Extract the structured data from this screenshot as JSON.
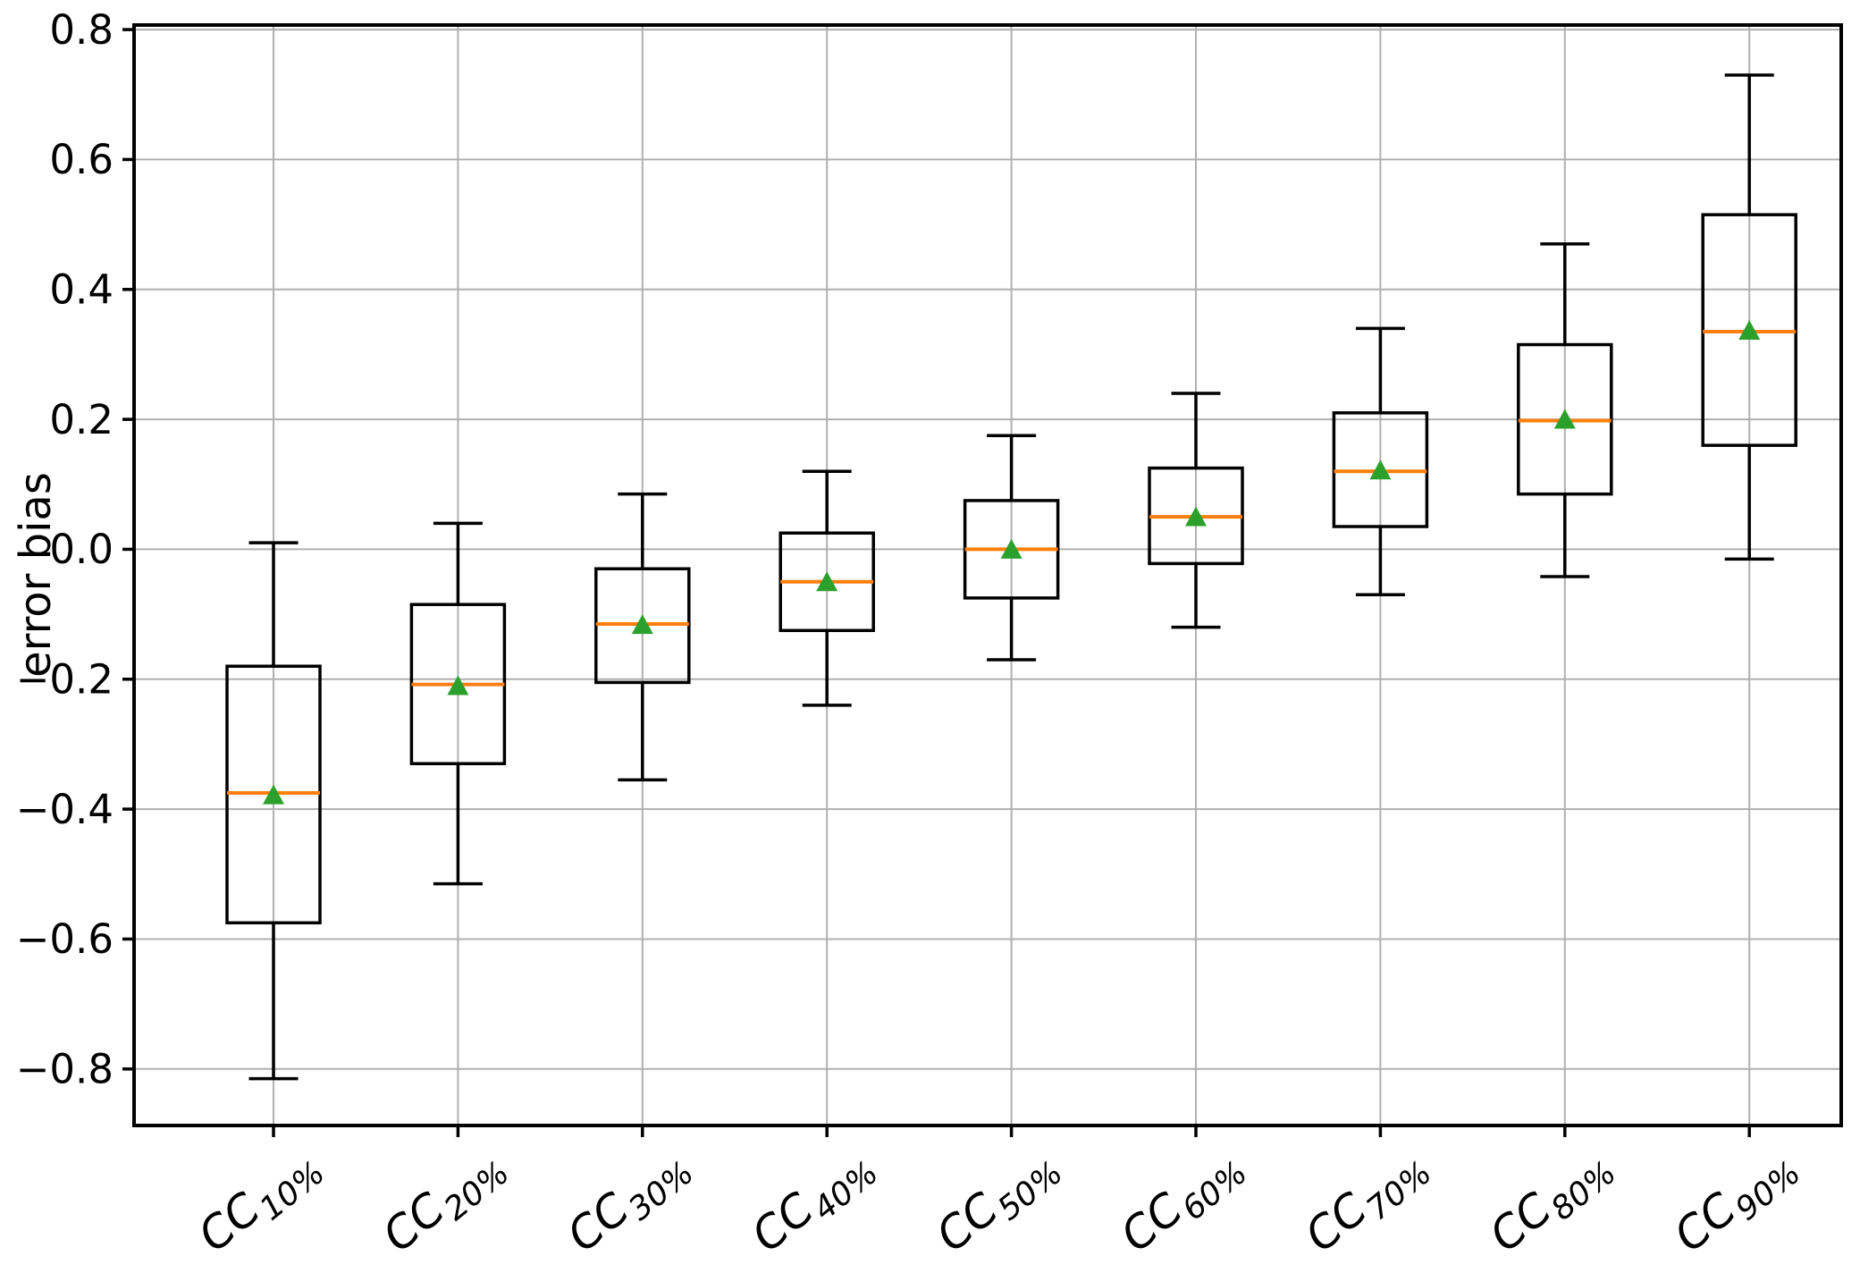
{
  "chart_data": {
    "type": "boxplot",
    "title": "",
    "xlabel": "",
    "ylabel": "error bias",
    "ylim": [
      -0.887,
      0.807
    ],
    "yticks": [
      0.8,
      0.6,
      0.4,
      0.2,
      0.0,
      -0.2,
      -0.4,
      -0.6,
      -0.8
    ],
    "ytick_labels": [
      "0.8",
      "0.6",
      "0.4",
      "0.2",
      "0.0",
      "−0.2",
      "−0.4",
      "−0.6",
      "−0.8"
    ],
    "grid": true,
    "legend": "none",
    "categories": [
      {
        "main": "CC",
        "sub": "10%"
      },
      {
        "main": "CC",
        "sub": "20%"
      },
      {
        "main": "CC",
        "sub": "30%"
      },
      {
        "main": "CC",
        "sub": "40%"
      },
      {
        "main": "CC",
        "sub": "50%"
      },
      {
        "main": "CC",
        "sub": "60%"
      },
      {
        "main": "CC",
        "sub": "70%"
      },
      {
        "main": "CC",
        "sub": "80%"
      },
      {
        "main": "CC",
        "sub": "90%"
      }
    ],
    "series": [
      {
        "label": "CC10%",
        "whisker_low": -0.815,
        "q1": -0.575,
        "median": -0.375,
        "mean": -0.38,
        "q3": -0.18,
        "whisker_high": 0.01
      },
      {
        "label": "CC20%",
        "whisker_low": -0.515,
        "q1": -0.33,
        "median": -0.208,
        "mean": -0.212,
        "q3": -0.085,
        "whisker_high": 0.04
      },
      {
        "label": "CC30%",
        "whisker_low": -0.355,
        "q1": -0.205,
        "median": -0.115,
        "mean": -0.118,
        "q3": -0.03,
        "whisker_high": 0.085
      },
      {
        "label": "CC40%",
        "whisker_low": -0.24,
        "q1": -0.125,
        "median": -0.05,
        "mean": -0.052,
        "q3": 0.025,
        "whisker_high": 0.12
      },
      {
        "label": "CC50%",
        "whisker_low": -0.17,
        "q1": -0.075,
        "median": 0.0,
        "mean": -0.002,
        "q3": 0.075,
        "whisker_high": 0.175
      },
      {
        "label": "CC60%",
        "whisker_low": -0.12,
        "q1": -0.022,
        "median": 0.05,
        "mean": 0.048,
        "q3": 0.125,
        "whisker_high": 0.24
      },
      {
        "label": "CC70%",
        "whisker_low": -0.07,
        "q1": 0.035,
        "median": 0.12,
        "mean": 0.12,
        "q3": 0.21,
        "whisker_high": 0.34
      },
      {
        "label": "CC80%",
        "whisker_low": -0.042,
        "q1": 0.085,
        "median": 0.198,
        "mean": 0.198,
        "q3": 0.315,
        "whisker_high": 0.47
      },
      {
        "label": "CC90%",
        "whisker_low": -0.015,
        "q1": 0.16,
        "median": 0.335,
        "mean": 0.335,
        "q3": 0.515,
        "whisker_high": 0.73
      }
    ],
    "colors": {
      "box_line": "#000000",
      "median": "#ff7f0e",
      "mean_marker": "#2ca02c",
      "grid": "#b0b0b0",
      "axis": "#000000",
      "background": "#ffffff"
    },
    "marker_shapes": {
      "mean": "triangle-up-icon"
    }
  }
}
